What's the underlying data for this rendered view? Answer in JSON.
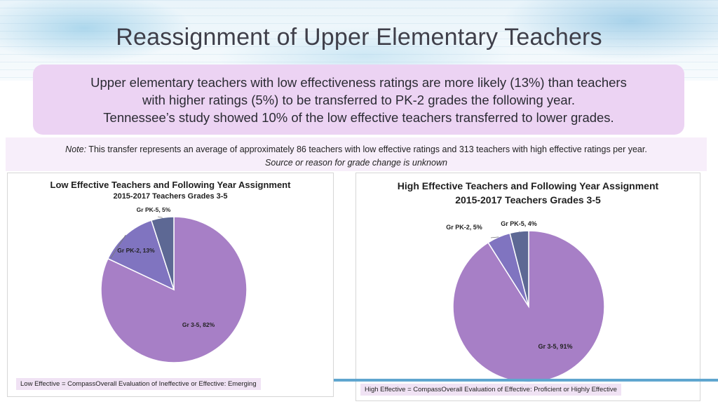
{
  "slide": {
    "title": "Reassignment of Upper Elementary Teachers",
    "summary": [
      "Upper elementary teachers with low effectiveness ratings are more likely (13%) than teachers",
      "with higher ratings (5%) to be transferred to PK-2 grades the following year.",
      "Tennessee’s study showed 10% of the low effective teachers transferred to lower grades."
    ],
    "note_label": "Note:",
    "note_text": " This transfer represents an average of approximately 86 teachers with low effective ratings and 313 teachers with high effective ratings per year.",
    "note_source": "Source or reason for grade change is unknown"
  },
  "colors": {
    "main_slice": "#a77fc6",
    "second_slice": "#8074c0",
    "third_slice": "#5d6894"
  },
  "chart_data": [
    {
      "type": "pie",
      "title": "Low Effective Teachers and Following Year Assignment",
      "subtitle": "2015-2017 Teachers Grades 3-5",
      "slices": [
        {
          "label": "Gr 3-5, 82%",
          "value": 82
        },
        {
          "label": "Gr PK-2, 13%",
          "value": 13
        },
        {
          "label": "Gr PK-5, 5%",
          "value": 5
        }
      ],
      "footnote": "Low Effective = CompassOverall Evaluation of Ineffective or Effective: Emerging"
    },
    {
      "type": "pie",
      "title": "High Effective Teachers and Following Year Assignment",
      "subtitle": "2015-2017 Teachers Grades 3-5",
      "slices": [
        {
          "label": "Gr 3-5, 91%",
          "value": 91
        },
        {
          "label": "Gr PK-2, 5%",
          "value": 5
        },
        {
          "label": "Gr PK-5, 4%",
          "value": 4
        }
      ],
      "footnote": "High Effective = CompassOverall Evaluation of Effective: Proficient or Highly Effective"
    }
  ]
}
